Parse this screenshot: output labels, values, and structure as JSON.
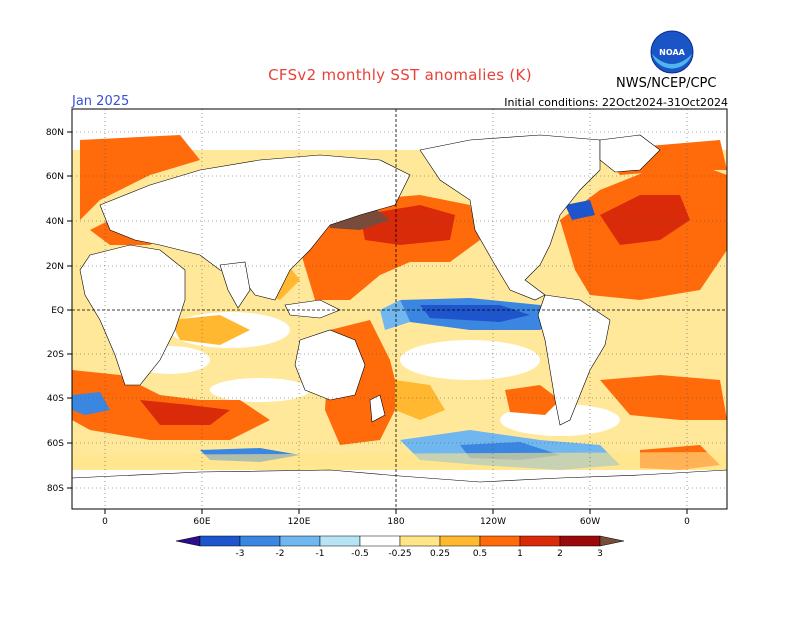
{
  "header": {
    "title": "CFSv2 monthly SST anomalies (K)",
    "month": "Jan 2025",
    "initial_conditions": "Initial conditions: 22Oct2024-31Oct2024",
    "org": "NWS/NCEP/CPC",
    "logo_text": "NOAA"
  },
  "map": {
    "lat_labels": [
      "80N",
      "60N",
      "40N",
      "20N",
      "EQ",
      "20S",
      "40S",
      "60S",
      "80S"
    ],
    "lon_labels": [
      "0",
      "60E",
      "120E",
      "180",
      "120W",
      "60W",
      "0"
    ]
  },
  "colorbar": {
    "tick_labels": [
      "-3",
      "-2",
      "-1",
      "-0.5",
      "-0.25",
      "0.25",
      "0.5",
      "1",
      "2",
      "3"
    ],
    "colors": [
      "#2b0e8e",
      "#1f55cc",
      "#3a86e0",
      "#70b6ef",
      "#b7e4f5",
      "#ffffff",
      "#ffe488",
      "#ffb830",
      "#ff6a0a",
      "#d92a0a",
      "#9a0a0a",
      "#7a4a3a"
    ]
  }
}
